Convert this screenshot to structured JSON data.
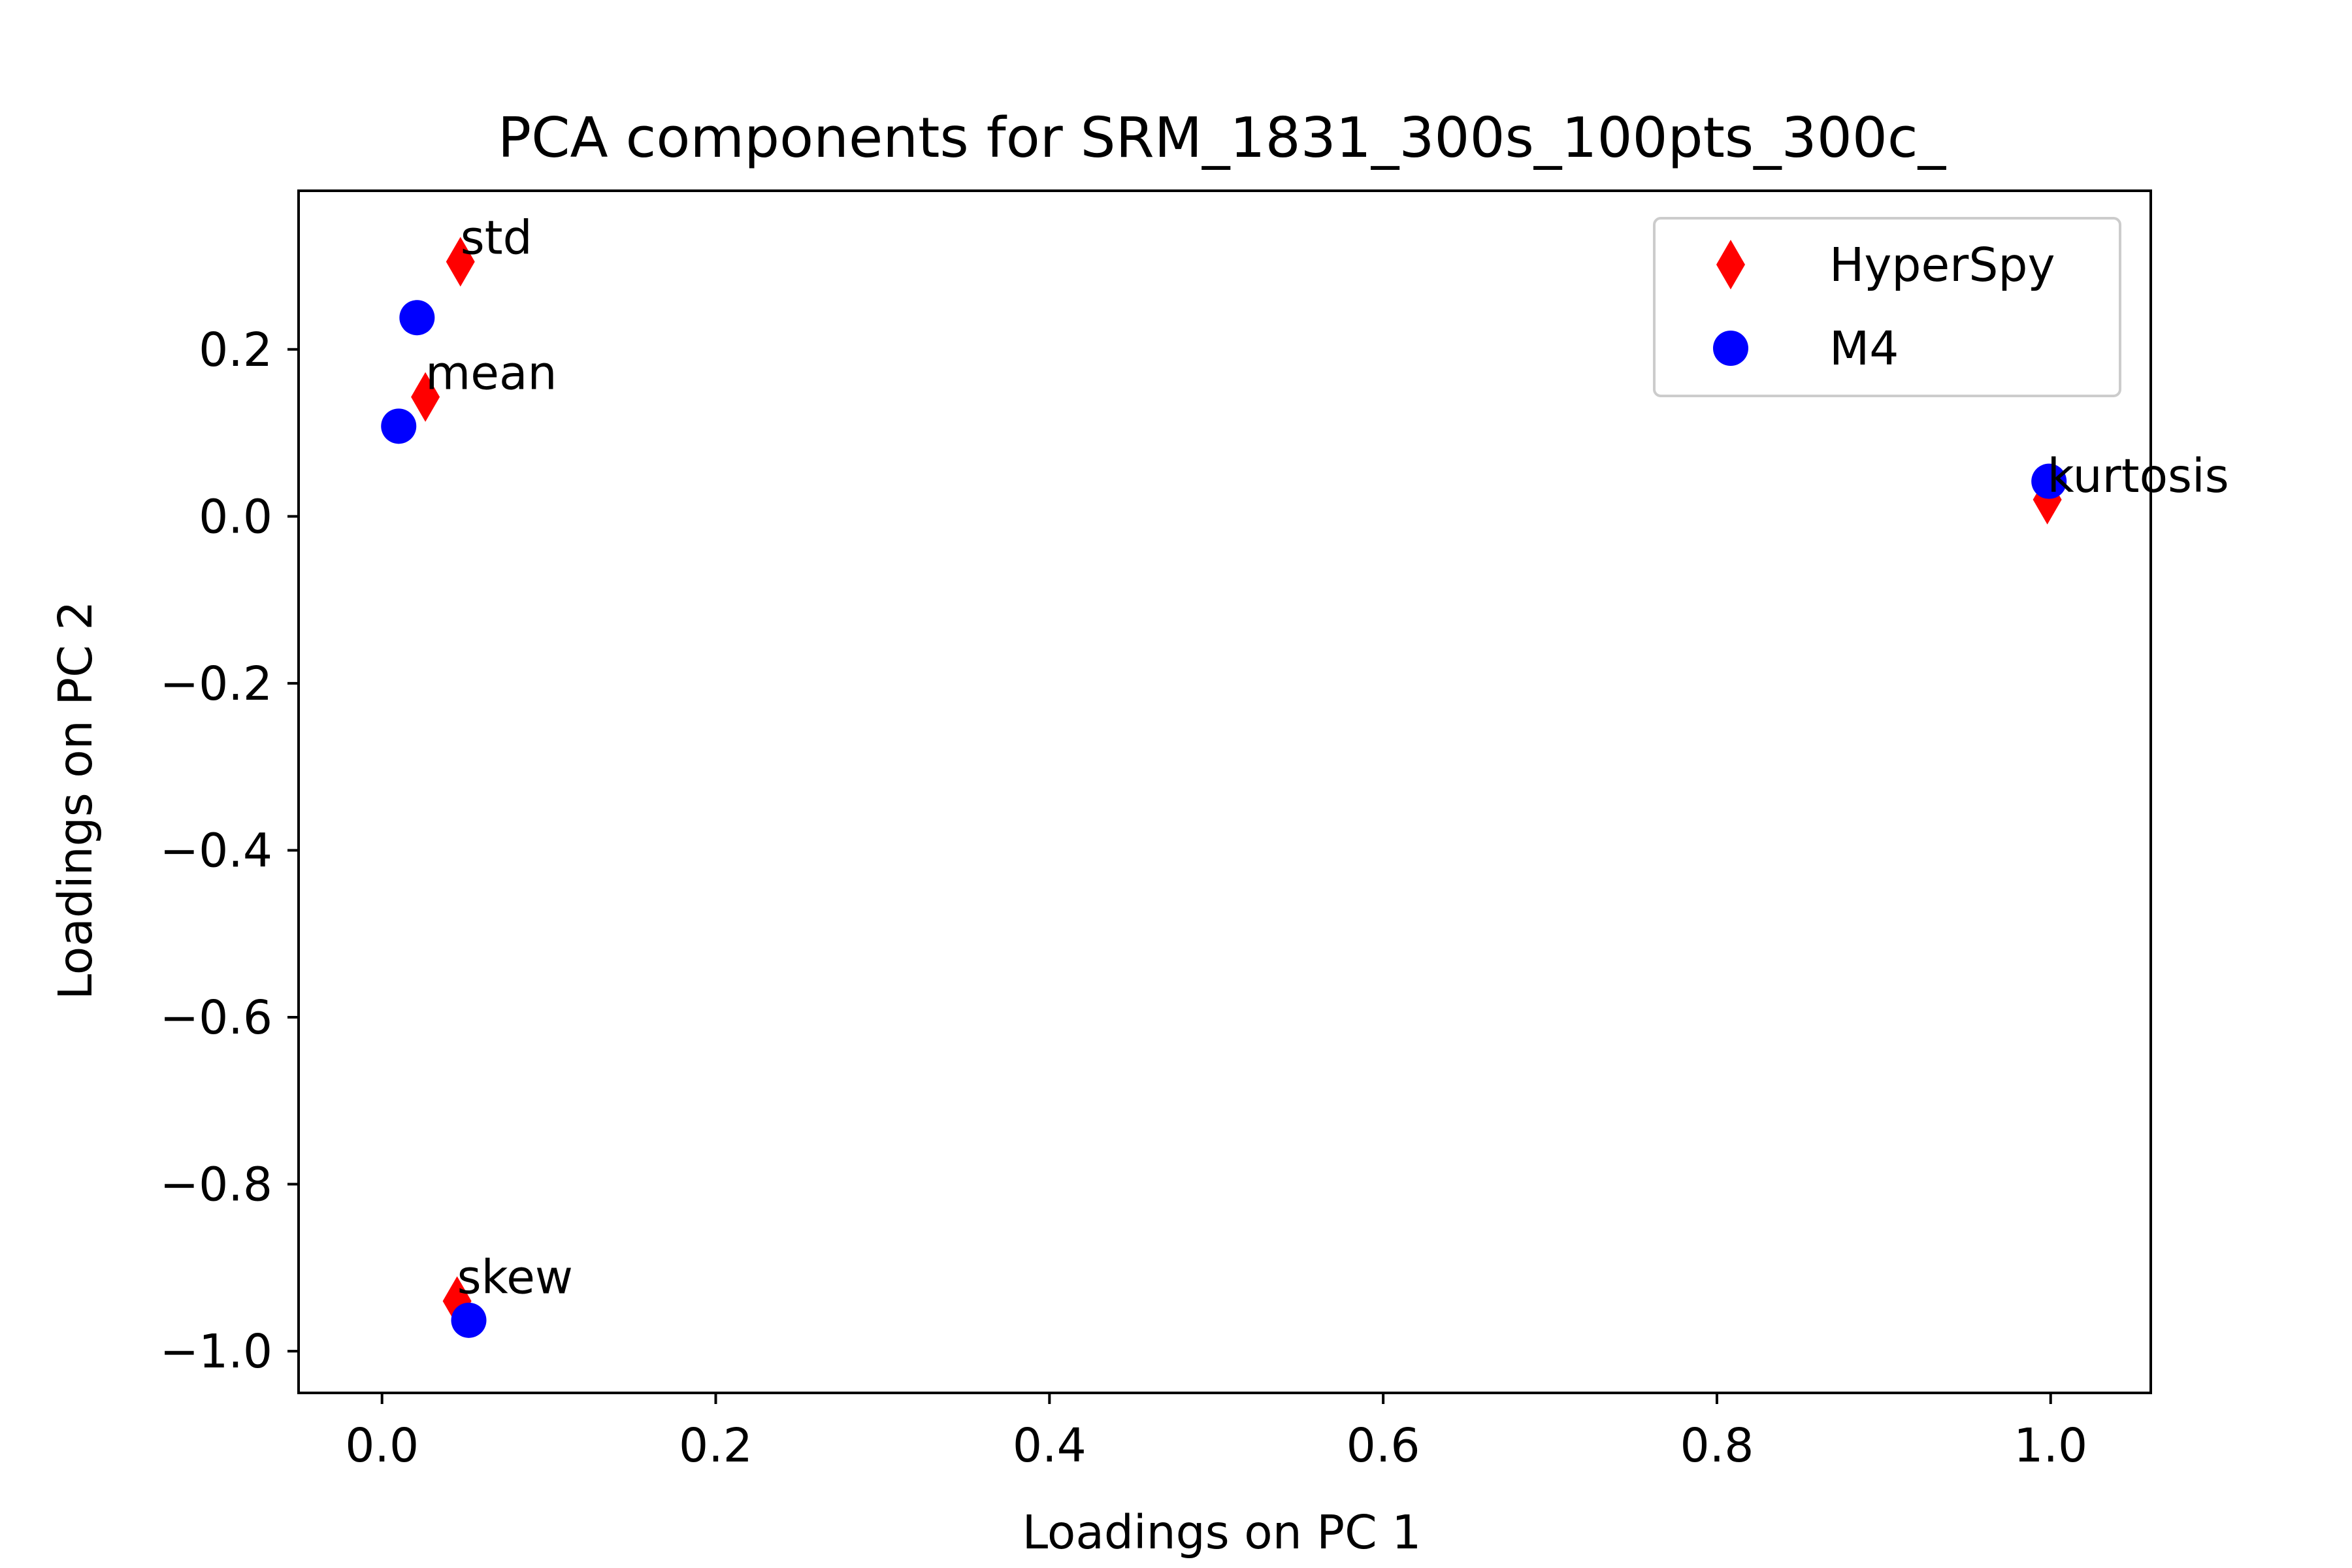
{
  "chart_data": {
    "type": "scatter",
    "title": "PCA components for SRM_1831_300s_100pts_300c_",
    "xlabel": "Loadings on PC 1",
    "ylabel": "Loadings on PC 2",
    "xlim": [
      -0.05,
      1.06
    ],
    "ylim": [
      -1.05,
      0.39
    ],
    "xticks": [
      {
        "value": 0.0,
        "label": "0.0"
      },
      {
        "value": 0.2,
        "label": "0.2"
      },
      {
        "value": 0.4,
        "label": "0.4"
      },
      {
        "value": 0.6,
        "label": "0.6"
      },
      {
        "value": 0.8,
        "label": "0.8"
      },
      {
        "value": 1.0,
        "label": "1.0"
      }
    ],
    "yticks": [
      {
        "value": 0.2,
        "label": "0.2"
      },
      {
        "value": 0.0,
        "label": "0.0"
      },
      {
        "value": -0.2,
        "label": "−0.2"
      },
      {
        "value": -0.4,
        "label": "−0.4"
      },
      {
        "value": -0.6,
        "label": "−0.6"
      },
      {
        "value": -0.8,
        "label": "−0.8"
      },
      {
        "value": -1.0,
        "label": "−1.0"
      }
    ],
    "grid": false,
    "legend_position": "top-right",
    "series": [
      {
        "name": "HyperSpy",
        "marker": "diamond",
        "color": "#ff0000",
        "points": [
          {
            "x": 0.047,
            "y": 0.305
          },
          {
            "x": 0.026,
            "y": 0.143
          },
          {
            "x": 0.998,
            "y": 0.02
          },
          {
            "x": 0.045,
            "y": -0.94
          }
        ]
      },
      {
        "name": "M4",
        "marker": "circle",
        "color": "#0000ff",
        "points": [
          {
            "x": 0.021,
            "y": 0.238
          },
          {
            "x": 0.01,
            "y": 0.108
          },
          {
            "x": 0.999,
            "y": 0.042
          },
          {
            "x": 0.052,
            "y": -0.963
          }
        ]
      }
    ],
    "annotations": [
      {
        "text": "std",
        "x": 0.047,
        "y": 0.305
      },
      {
        "text": "mean",
        "x": 0.026,
        "y": 0.143
      },
      {
        "text": "kurtosis",
        "x": 0.998,
        "y": 0.02
      },
      {
        "text": "skew",
        "x": 0.045,
        "y": -0.94
      }
    ]
  }
}
